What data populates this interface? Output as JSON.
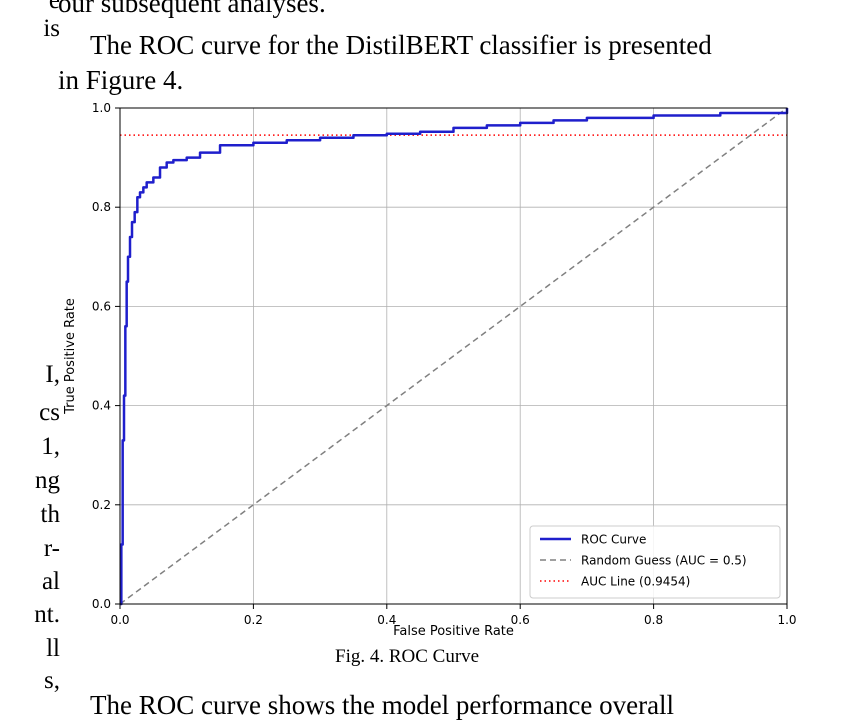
{
  "paper": {
    "top_line": "our subsequent analyses.",
    "intro_line1": "The ROC curve for the DistilBERT classifier is presented",
    "intro_line2": "in Figure 4.",
    "caption": "Fig. 4.  ROC Curve",
    "bottom_line": "The ROC curve shows the model performance overall",
    "left_column_fragments": [
      "e",
      "is",
      "I,",
      "cs",
      "1,",
      "ng",
      "th",
      "r-",
      "al",
      "nt.",
      "ll",
      "s,"
    ]
  },
  "chart_data": {
    "type": "line",
    "title": "",
    "xlabel": "False Positive Rate",
    "ylabel": "True Positive Rate",
    "xlim": [
      0.0,
      1.0
    ],
    "ylim": [
      0.0,
      1.0
    ],
    "xticks": [
      "0.0",
      "0.2",
      "0.4",
      "0.6",
      "0.8",
      "1.0"
    ],
    "yticks": [
      "0.0",
      "0.2",
      "0.4",
      "0.6",
      "0.8",
      "1.0"
    ],
    "grid": true,
    "legend_position": "lower-right",
    "series": [
      {
        "name": "ROC Curve",
        "color": "#1f1fcc",
        "style": "solid",
        "x": [
          0.0,
          0.002,
          0.004,
          0.006,
          0.008,
          0.01,
          0.012,
          0.015,
          0.018,
          0.022,
          0.026,
          0.03,
          0.035,
          0.04,
          0.05,
          0.06,
          0.07,
          0.08,
          0.1,
          0.12,
          0.15,
          0.2,
          0.25,
          0.3,
          0.35,
          0.4,
          0.45,
          0.5,
          0.55,
          0.6,
          0.65,
          0.7,
          0.8,
          0.9,
          1.0
        ],
        "y": [
          0.0,
          0.12,
          0.33,
          0.42,
          0.56,
          0.65,
          0.7,
          0.74,
          0.77,
          0.79,
          0.82,
          0.83,
          0.84,
          0.85,
          0.86,
          0.88,
          0.89,
          0.895,
          0.9,
          0.91,
          0.925,
          0.93,
          0.935,
          0.94,
          0.945,
          0.948,
          0.952,
          0.96,
          0.965,
          0.97,
          0.975,
          0.98,
          0.985,
          0.99,
          1.0
        ]
      },
      {
        "name": "Random Guess (AUC = 0.5)",
        "color": "#808080",
        "style": "dashed",
        "x": [
          0.0,
          1.0
        ],
        "y": [
          0.0,
          1.0
        ]
      },
      {
        "name": "AUC Line (0.9454)",
        "color": "#ff0000",
        "style": "dotted",
        "x": [
          0.0,
          1.0
        ],
        "y": [
          0.9454,
          0.9454
        ]
      }
    ]
  }
}
